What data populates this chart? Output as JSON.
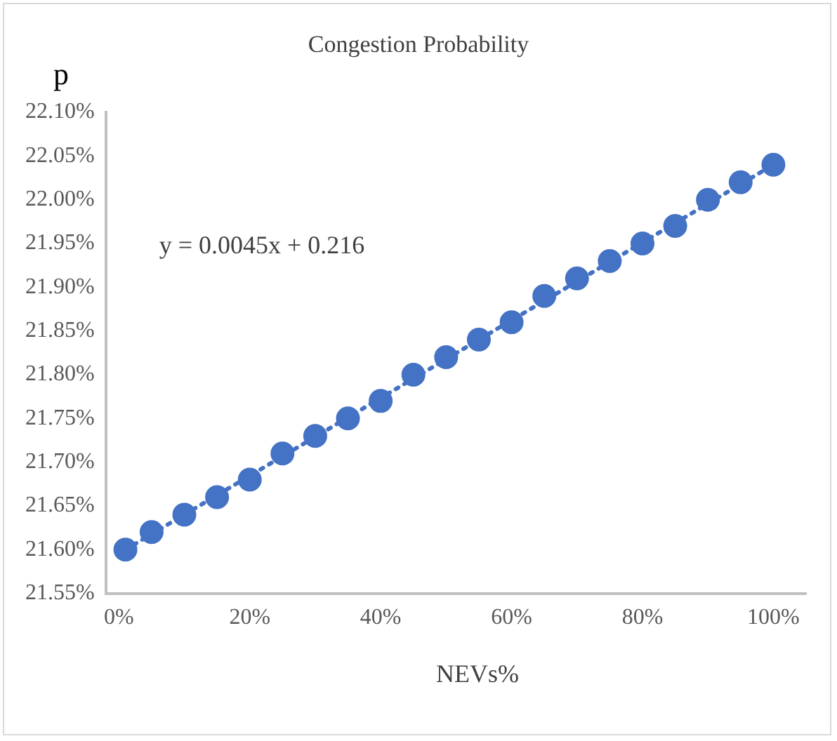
{
  "chart_data": {
    "type": "scatter",
    "title": "Congestion Probability",
    "xlabel": "NEVs%",
    "ylabel": "p",
    "x": [
      1,
      5,
      10,
      15,
      20,
      25,
      30,
      35,
      40,
      45,
      50,
      55,
      60,
      65,
      70,
      75,
      80,
      85,
      90,
      95,
      100
    ],
    "series": [
      {
        "type": "scatter",
        "color": "#4472c4",
        "marker": "circle",
        "values": [
          21.6,
          21.62,
          21.64,
          21.66,
          21.68,
          21.71,
          21.73,
          21.75,
          21.77,
          21.8,
          21.82,
          21.84,
          21.86,
          21.89,
          21.91,
          21.93,
          21.95,
          21.97,
          22.0,
          22.02,
          22.04
        ]
      },
      {
        "type": "line",
        "color": "#4472c4",
        "marker": "none",
        "line_style": "dotted",
        "x": [
          1,
          100
        ],
        "values": [
          21.6,
          22.04
        ]
      }
    ],
    "xlim": [
      -2,
      105
    ],
    "xticks": [
      {
        "value": 0,
        "label": "0%"
      },
      {
        "value": 20,
        "label": "20%"
      },
      {
        "value": 40,
        "label": "40%"
      },
      {
        "value": 60,
        "label": "60%"
      },
      {
        "value": 80,
        "label": "80%"
      },
      {
        "value": 100,
        "label": "100%"
      }
    ],
    "ylim": [
      21.55,
      22.1
    ],
    "yticks": [
      {
        "value": 21.55,
        "label": "21.55%"
      },
      {
        "value": 21.6,
        "label": "21.60%"
      },
      {
        "value": 21.65,
        "label": "21.65%"
      },
      {
        "value": 21.7,
        "label": "21.70%"
      },
      {
        "value": 21.75,
        "label": "21.75%"
      },
      {
        "value": 21.8,
        "label": "21.80%"
      },
      {
        "value": 21.85,
        "label": "21.85%"
      },
      {
        "value": 21.9,
        "label": "21.90%"
      },
      {
        "value": 21.95,
        "label": "21.95%"
      },
      {
        "value": 22.0,
        "label": "22.00%"
      },
      {
        "value": 22.05,
        "label": "22.05%"
      },
      {
        "value": 22.1,
        "label": "22.10%"
      }
    ],
    "annotations": [
      "y = 0.0045x + 0.216"
    ],
    "grid": false,
    "legend": false
  }
}
